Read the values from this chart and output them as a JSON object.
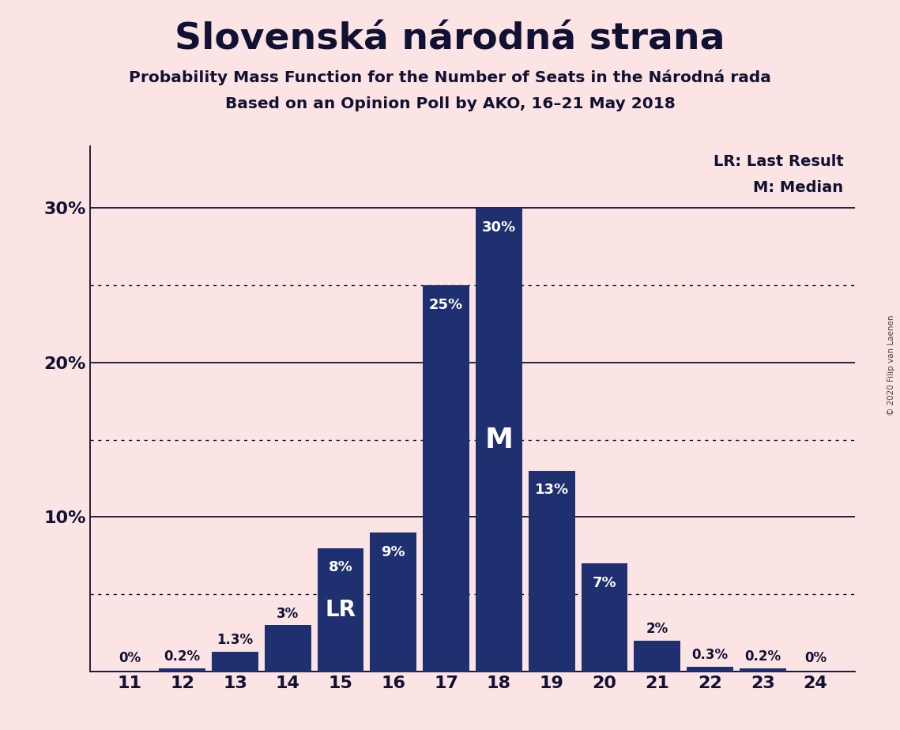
{
  "title": "Slovenská národná strana",
  "subtitle1": "Probability Mass Function for the Number of Seats in the Národná rada",
  "subtitle2": "Based on an Opinion Poll by AKO, 16–21 May 2018",
  "copyright": "© 2020 Filip van Laenen",
  "seats": [
    11,
    12,
    13,
    14,
    15,
    16,
    17,
    18,
    19,
    20,
    21,
    22,
    23,
    24
  ],
  "probabilities": [
    0.0,
    0.2,
    1.3,
    3.0,
    8.0,
    9.0,
    25.0,
    30.0,
    13.0,
    7.0,
    2.0,
    0.3,
    0.2,
    0.0
  ],
  "bar_color": "#1f3070",
  "background_color": "#fce4e4",
  "label_color_dark": "#111133",
  "label_color_light": "#ffffff",
  "last_result_seat": 15,
  "median_seat": 18,
  "solid_yticks": [
    0,
    10,
    20,
    30
  ],
  "dotted_yticks": [
    5,
    15,
    25
  ],
  "ytick_show": [
    10,
    20,
    30
  ],
  "legend_lr": "LR: Last Result",
  "legend_m": "M: Median",
  "ylim_max": 34
}
